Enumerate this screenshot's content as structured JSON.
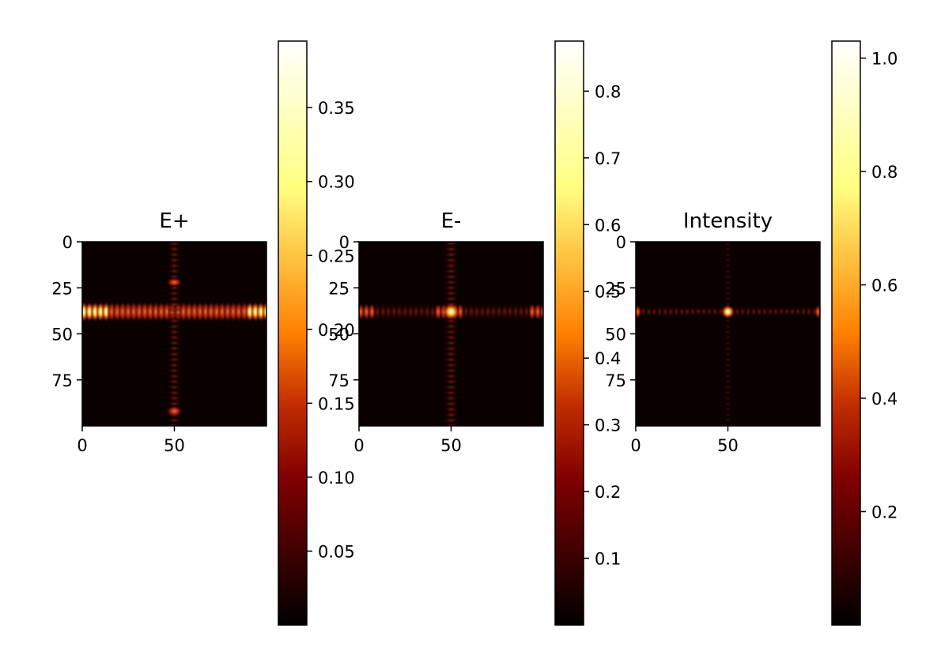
{
  "chart_data": [
    {
      "type": "heatmap",
      "title": "E+",
      "colormap": "afmhot",
      "x_ticks": [
        0,
        50
      ],
      "y_ticks": [
        0,
        25,
        50,
        75
      ],
      "xlim": [
        0,
        100
      ],
      "ylim": [
        100,
        0
      ],
      "pattern": "bright horizontal band of bright spots near row 38, dimmer vertical column near x 50; darker centre",
      "colorbar": {
        "range": [
          0.0,
          0.395
        ],
        "ticks": [
          "0.05",
          "0.10",
          "0.15",
          "0.20",
          "0.25",
          "0.30",
          "0.35"
        ]
      }
    },
    {
      "type": "heatmap",
      "title": "E-",
      "colormap": "afmhot",
      "x_ticks": [
        0,
        50
      ],
      "y_ticks": [
        0,
        25,
        50,
        75
      ],
      "xlim": [
        0,
        100
      ],
      "ylim": [
        100,
        0
      ],
      "pattern": "cross of spots: horizontal band at row 38 and vertical column at x 50, brightest spot at the crossing",
      "colorbar": {
        "range": [
          0.0,
          0.875
        ],
        "ticks": [
          "0.1",
          "0.2",
          "0.3",
          "0.4",
          "0.5",
          "0.6",
          "0.7",
          "0.8"
        ]
      }
    },
    {
      "type": "heatmap",
      "title": "Intensity",
      "colormap": "afmhot",
      "x_ticks": [
        0,
        50
      ],
      "y_ticks": [
        0,
        25,
        50,
        75
      ],
      "xlim": [
        0,
        100
      ],
      "ylim": [
        100,
        0
      ],
      "pattern": "mostly dark; single bright spot at (50, 38) with faint spots along row 38",
      "colorbar": {
        "range": [
          0.0,
          1.03
        ],
        "ticks": [
          "0.2",
          "0.4",
          "0.6",
          "0.8",
          "1.0"
        ]
      }
    }
  ]
}
